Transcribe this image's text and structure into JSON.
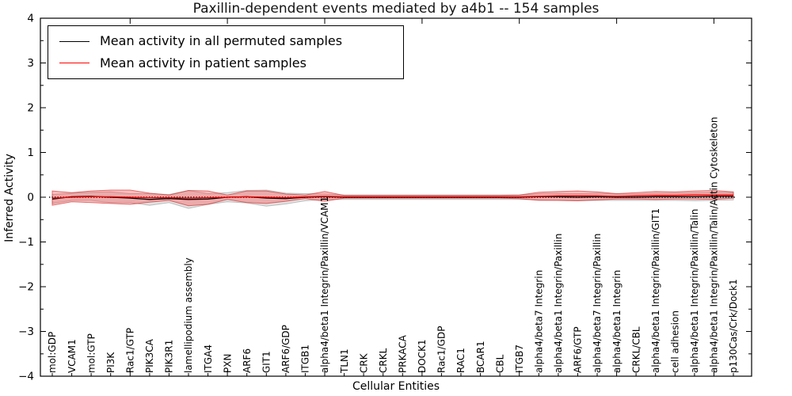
{
  "chart_data": {
    "type": "line",
    "title": "Paxillin-dependent events mediated by a4b1 -- 154 samples",
    "xlabel": "Cellular Entities",
    "ylabel": "Inferred Activity",
    "ylim": [
      -4,
      4
    ],
    "y_major_ticks": [
      -4,
      -3,
      -2,
      -1,
      0,
      1,
      2,
      3,
      4
    ],
    "y_tick_labels": [
      "−4",
      "−3",
      "−2",
      "−1",
      "0",
      "1",
      "2",
      "3",
      "4"
    ],
    "y_minor_tick_step": 0.5,
    "x_major_tick_values": [
      5,
      10,
      15,
      20,
      25,
      30,
      35
    ],
    "grid": false,
    "legend_position": "upper left",
    "zero_line": {
      "style": "dotted",
      "color": "#000000",
      "y": 0
    },
    "categories": [
      "mol:GDP",
      "VCAM1",
      "mol:GTP",
      "PI3K",
      "Rac1/GTP",
      "PIK3CA",
      "PIK3R1",
      "lamellipodium assembly",
      "ITGA4",
      "PXN",
      "ARF6",
      "GIT1",
      "ARF6/GDP",
      "ITGB1",
      "alpha4/beta1 Integrin/Paxillin/VCAM1",
      "TLN1",
      "CRK",
      "CRKL",
      "PRKACA",
      "DOCK1",
      "Rac1/GDP",
      "RAC1",
      "BCAR1",
      "CBL",
      "ITGB7",
      "alpha4/beta7 Integrin",
      "alpha4/beta1 Integrin/Paxillin",
      "ARF6/GTP",
      "alpha4/beta7 Integrin/Paxillin",
      "alpha4/beta1 Integrin",
      "CRKL/CBL",
      "alpha4/beta1 Integrin/Paxillin/GIT1",
      "cell adhesion",
      "alpha4/beta1 Integrin/Paxillin/Talin",
      "alpha4/beta1 Integrin/Paxillin/Talin/Actin Cytoskeleton",
      "p130Cas/Crk/Dock1"
    ],
    "series": [
      {
        "name": "Mean activity in all permuted samples",
        "color": "#000000",
        "band_fill": "#b0b0b0",
        "band_edge": "#9a9a9a",
        "values": [
          -0.04,
          0.01,
          0.02,
          0.0,
          -0.02,
          -0.05,
          -0.03,
          -0.05,
          -0.04,
          0.0,
          0.01,
          -0.02,
          -0.03,
          0.0,
          0.01,
          0.0,
          0.0,
          0.0,
          0.0,
          0.0,
          0.0,
          0.0,
          0.0,
          0.0,
          0.0,
          0.01,
          0.01,
          0.0,
          0.01,
          0.0,
          0.0,
          0.01,
          0.01,
          0.01,
          0.02,
          0.02
        ],
        "band_halfwidth": [
          0.1,
          0.08,
          0.09,
          0.12,
          0.1,
          0.13,
          0.09,
          0.2,
          0.12,
          0.1,
          0.14,
          0.18,
          0.12,
          0.08,
          0.06,
          0.05,
          0.05,
          0.05,
          0.05,
          0.05,
          0.05,
          0.05,
          0.05,
          0.05,
          0.05,
          0.07,
          0.08,
          0.08,
          0.08,
          0.07,
          0.07,
          0.08,
          0.08,
          0.09,
          0.09,
          0.08
        ]
      },
      {
        "name": "Mean activity in patient samples",
        "color": "#ff0000",
        "band_fill": "#ff3b3b",
        "band_edge": "#cc2222",
        "values": [
          -0.02,
          0.0,
          0.01,
          0.01,
          0.0,
          -0.01,
          -0.01,
          -0.02,
          -0.01,
          0.0,
          0.01,
          0.0,
          -0.01,
          0.01,
          0.02,
          0.01,
          0.01,
          0.01,
          0.01,
          0.01,
          0.01,
          0.01,
          0.01,
          0.01,
          0.01,
          0.02,
          0.03,
          0.03,
          0.03,
          0.02,
          0.03,
          0.04,
          0.04,
          0.05,
          0.05,
          0.05
        ],
        "band_halfwidth": [
          0.16,
          0.1,
          0.13,
          0.15,
          0.16,
          0.1,
          0.06,
          0.17,
          0.15,
          0.05,
          0.13,
          0.14,
          0.08,
          0.04,
          0.11,
          0.03,
          0.03,
          0.03,
          0.03,
          0.03,
          0.03,
          0.03,
          0.03,
          0.03,
          0.04,
          0.09,
          0.1,
          0.11,
          0.09,
          0.06,
          0.07,
          0.09,
          0.08,
          0.09,
          0.1,
          0.07
        ]
      }
    ]
  }
}
